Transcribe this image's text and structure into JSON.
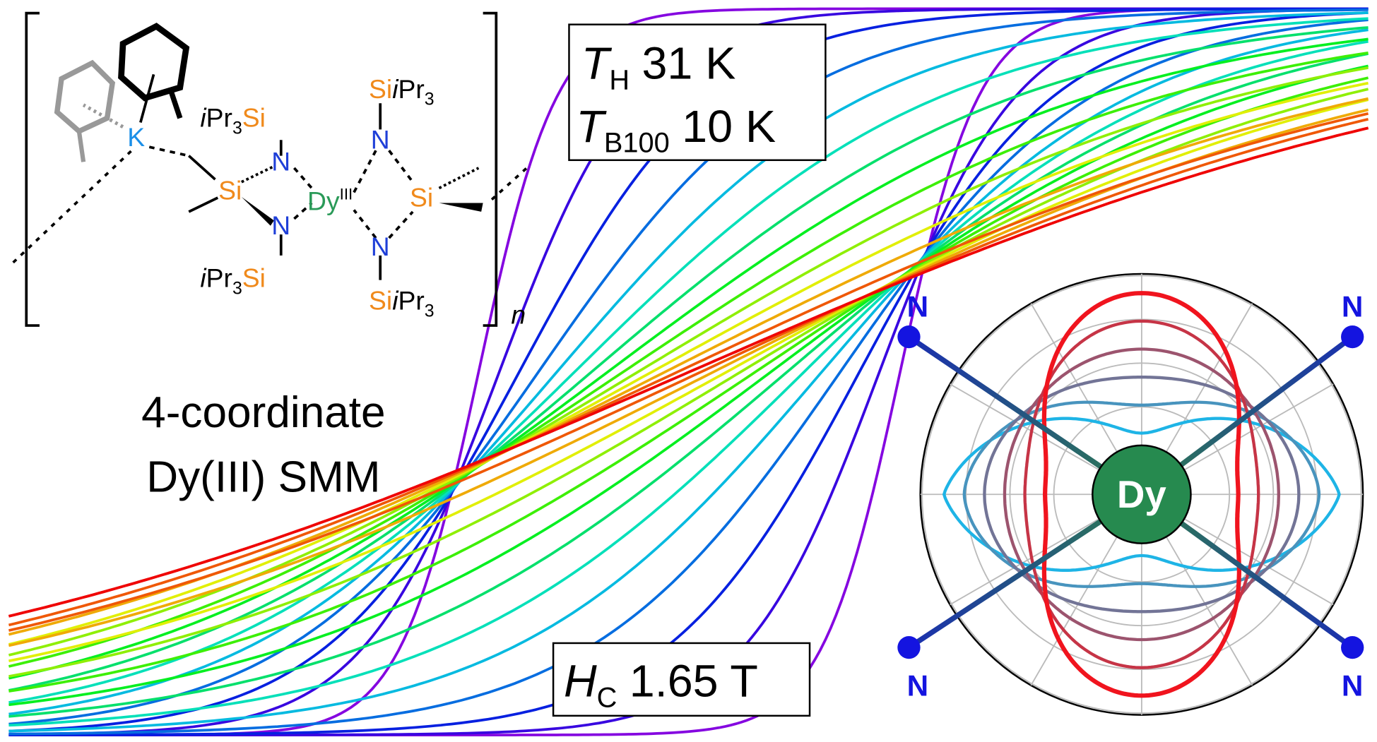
{
  "caption": {
    "line1": "4-coordinate",
    "line2": "Dy(III) SMM"
  },
  "box_top": {
    "t_h": {
      "symbol": "T",
      "subscript": "H",
      "value": "31 K"
    },
    "t_b": {
      "symbol": "T",
      "subscript": "B100",
      "value": "10 K"
    }
  },
  "box_bottom": {
    "h_c": {
      "symbol": "H",
      "subscript": "C",
      "value": "1.65 T"
    }
  },
  "polar": {
    "center": "Dy",
    "ligands": [
      "N",
      "N",
      "N",
      "N"
    ]
  },
  "molecule": {
    "k": "K",
    "si_top_left": [
      "i",
      "Pr",
      "3",
      "Si"
    ],
    "n_upper_left": "N",
    "si_center_left": "Si",
    "dy": [
      "Dy",
      "III"
    ],
    "n_lower_left": "N",
    "si_bottom_left": [
      "i",
      "Pr",
      "3",
      "Si"
    ],
    "si_top_right": [
      "Si",
      "i",
      "Pr",
      "3"
    ],
    "n_upper_right": "N",
    "si_center_right": "Si",
    "n_lower_right": "N",
    "si_bottom_right": [
      "Si",
      "i",
      "Pr",
      "3"
    ],
    "n": "n"
  }
}
